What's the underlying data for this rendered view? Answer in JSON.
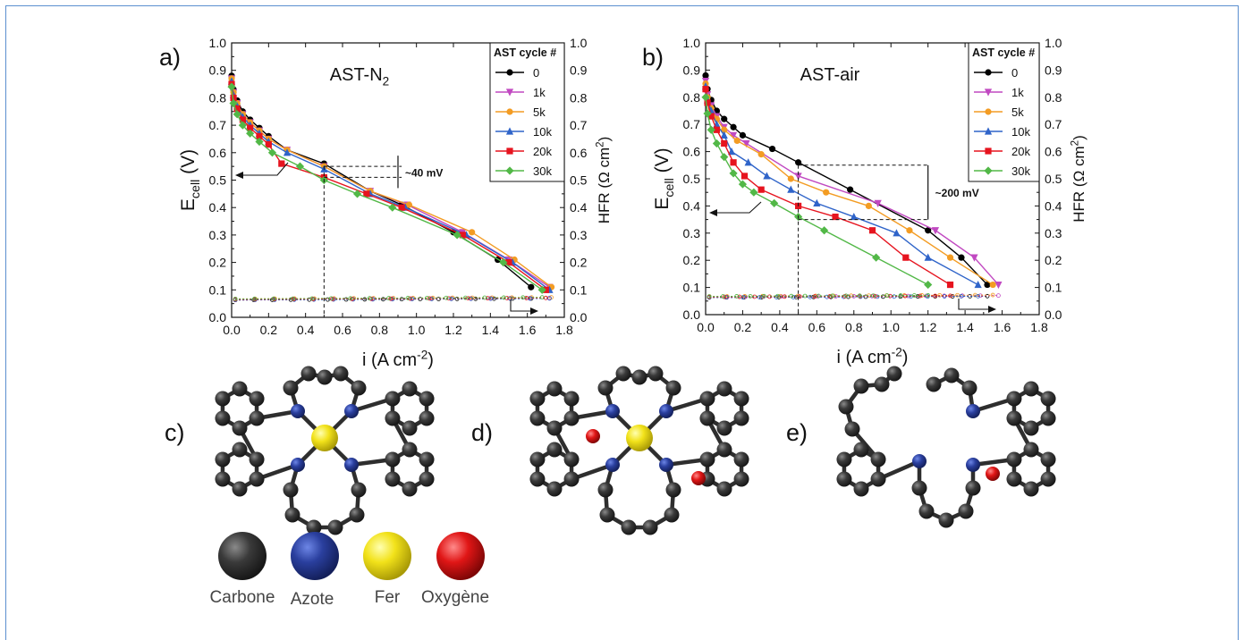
{
  "figure": {
    "panel_labels": [
      "a)",
      "b)",
      "c)",
      "d)",
      "e)"
    ],
    "atom_legend": [
      {
        "label": "Carbone",
        "color": "#3a3a3a"
      },
      {
        "label": "Azote",
        "color": "#2a3f9e"
      },
      {
        "label": "Fer",
        "color": "#f2e21a"
      },
      {
        "label": "Oxygène",
        "color": "#e01616"
      }
    ]
  },
  "chart_data": [
    {
      "panel": "a)",
      "type": "line",
      "title": "AST-N2",
      "xlabel": "i (A cm-2)",
      "ylabel": "Ecell (V)",
      "y2label": "HFR (Ω cm2)",
      "xlim": [
        0.0,
        1.8
      ],
      "ylim": [
        0.0,
        1.0
      ],
      "y2lim": [
        0.0,
        1.0
      ],
      "xticks": [
        "0.0",
        "0.2",
        "0.4",
        "0.6",
        "0.8",
        "1.0",
        "1.2",
        "1.4",
        "1.6",
        "1.8"
      ],
      "yticks": [
        "0.0",
        "0.1",
        "0.2",
        "0.3",
        "0.4",
        "0.5",
        "0.6",
        "0.7",
        "0.8",
        "0.9",
        "1.0"
      ],
      "legend_title": "AST cycle #",
      "legend_position": "top-right",
      "annotation": "~40 mV",
      "series": [
        {
          "name": "0",
          "color": "#000000",
          "marker": "circle",
          "x": [
            0.0,
            0.01,
            0.03,
            0.06,
            0.1,
            0.15,
            0.2,
            0.3,
            0.5,
            0.75,
            0.92,
            1.2,
            1.44,
            1.62
          ],
          "y": [
            0.88,
            0.83,
            0.79,
            0.75,
            0.72,
            0.69,
            0.66,
            0.61,
            0.56,
            0.46,
            0.41,
            0.31,
            0.21,
            0.11
          ]
        },
        {
          "name": "1k",
          "color": "#c149c1",
          "marker": "triangle-down",
          "x": [
            0.0,
            0.01,
            0.03,
            0.06,
            0.1,
            0.15,
            0.2,
            0.3,
            0.5,
            0.75,
            0.95,
            1.25,
            1.5,
            1.72
          ],
          "y": [
            0.87,
            0.82,
            0.78,
            0.74,
            0.71,
            0.68,
            0.65,
            0.61,
            0.55,
            0.46,
            0.41,
            0.31,
            0.21,
            0.11
          ]
        },
        {
          "name": "5k",
          "color": "#f39c23",
          "marker": "circle",
          "x": [
            0.0,
            0.01,
            0.03,
            0.06,
            0.1,
            0.15,
            0.2,
            0.3,
            0.5,
            0.75,
            0.96,
            1.3,
            1.53,
            1.73
          ],
          "y": [
            0.87,
            0.82,
            0.78,
            0.74,
            0.71,
            0.68,
            0.65,
            0.61,
            0.55,
            0.46,
            0.41,
            0.31,
            0.21,
            0.11
          ]
        },
        {
          "name": "10k",
          "color": "#2f64c9",
          "marker": "triangle-up",
          "x": [
            0.0,
            0.01,
            0.03,
            0.06,
            0.1,
            0.15,
            0.2,
            0.3,
            0.5,
            0.75,
            0.94,
            1.27,
            1.52,
            1.72
          ],
          "y": [
            0.86,
            0.81,
            0.77,
            0.73,
            0.7,
            0.67,
            0.64,
            0.6,
            0.54,
            0.45,
            0.4,
            0.3,
            0.2,
            0.1
          ]
        },
        {
          "name": "20k",
          "color": "#e6141f",
          "marker": "square",
          "x": [
            0.0,
            0.01,
            0.03,
            0.06,
            0.1,
            0.15,
            0.2,
            0.27,
            0.5,
            0.73,
            0.92,
            1.25,
            1.5,
            1.7
          ],
          "y": [
            0.85,
            0.8,
            0.76,
            0.72,
            0.69,
            0.66,
            0.63,
            0.56,
            0.51,
            0.45,
            0.4,
            0.3,
            0.2,
            0.1
          ]
        },
        {
          "name": "30k",
          "color": "#52b847",
          "marker": "diamond",
          "x": [
            0.0,
            0.01,
            0.03,
            0.06,
            0.1,
            0.15,
            0.22,
            0.37,
            0.5,
            0.68,
            0.87,
            1.22,
            1.47,
            1.68
          ],
          "y": [
            0.84,
            0.78,
            0.74,
            0.7,
            0.67,
            0.64,
            0.6,
            0.55,
            0.5,
            0.45,
            0.4,
            0.3,
            0.2,
            0.1
          ]
        }
      ]
    },
    {
      "panel": "b)",
      "type": "line",
      "title": "AST-air",
      "xlabel": "i (A cm-2)",
      "ylabel": "Ecell (V)",
      "y2label": "HFR (Ω cm2)",
      "xlim": [
        0.0,
        1.8
      ],
      "ylim": [
        0.0,
        1.0
      ],
      "y2lim": [
        0.0,
        1.0
      ],
      "xticks": [
        "0.0",
        "0.2",
        "0.4",
        "0.6",
        "0.8",
        "1.0",
        "1.2",
        "1.4",
        "1.6",
        "1.8"
      ],
      "yticks": [
        "0.0",
        "0.1",
        "0.2",
        "0.3",
        "0.4",
        "0.5",
        "0.6",
        "0.7",
        "0.8",
        "0.9",
        "1.0"
      ],
      "legend_title": "AST cycle #",
      "legend_position": "top-right",
      "annotation": "~200 mV",
      "series": [
        {
          "name": "0",
          "color": "#000000",
          "marker": "circle",
          "x": [
            0.0,
            0.01,
            0.03,
            0.06,
            0.1,
            0.15,
            0.2,
            0.36,
            0.5,
            0.78,
            1.2,
            1.38,
            1.52
          ],
          "y": [
            0.88,
            0.83,
            0.79,
            0.75,
            0.72,
            0.69,
            0.66,
            0.61,
            0.56,
            0.46,
            0.31,
            0.21,
            0.11
          ]
        },
        {
          "name": "1k",
          "color": "#c149c1",
          "marker": "triangle-down",
          "x": [
            0.0,
            0.01,
            0.03,
            0.06,
            0.1,
            0.15,
            0.22,
            0.5,
            0.93,
            1.24,
            1.45,
            1.58
          ],
          "y": [
            0.86,
            0.81,
            0.77,
            0.73,
            0.69,
            0.66,
            0.63,
            0.51,
            0.41,
            0.31,
            0.21,
            0.11
          ]
        },
        {
          "name": "5k",
          "color": "#f39c23",
          "marker": "circle",
          "x": [
            0.0,
            0.01,
            0.03,
            0.06,
            0.1,
            0.17,
            0.3,
            0.46,
            0.65,
            0.88,
            1.1,
            1.32,
            1.55
          ],
          "y": [
            0.85,
            0.8,
            0.76,
            0.72,
            0.68,
            0.64,
            0.59,
            0.5,
            0.45,
            0.4,
            0.31,
            0.21,
            0.11
          ]
        },
        {
          "name": "10k",
          "color": "#2f64c9",
          "marker": "triangle-up",
          "x": [
            0.0,
            0.01,
            0.03,
            0.06,
            0.1,
            0.14,
            0.23,
            0.33,
            0.46,
            0.6,
            0.8,
            1.03,
            1.2,
            1.47
          ],
          "y": [
            0.84,
            0.79,
            0.75,
            0.7,
            0.66,
            0.6,
            0.56,
            0.51,
            0.46,
            0.41,
            0.36,
            0.3,
            0.21,
            0.11
          ]
        },
        {
          "name": "20k",
          "color": "#e6141f",
          "marker": "square",
          "x": [
            0.0,
            0.01,
            0.03,
            0.06,
            0.1,
            0.15,
            0.21,
            0.3,
            0.5,
            0.7,
            0.9,
            1.08,
            1.32
          ],
          "y": [
            0.83,
            0.78,
            0.73,
            0.68,
            0.63,
            0.56,
            0.51,
            0.46,
            0.4,
            0.36,
            0.31,
            0.21,
            0.11
          ]
        },
        {
          "name": "30k",
          "color": "#52b847",
          "marker": "diamond",
          "x": [
            0.0,
            0.01,
            0.03,
            0.06,
            0.1,
            0.15,
            0.2,
            0.26,
            0.37,
            0.5,
            0.64,
            0.92,
            1.2
          ],
          "y": [
            0.8,
            0.74,
            0.68,
            0.63,
            0.58,
            0.52,
            0.48,
            0.45,
            0.41,
            0.36,
            0.31,
            0.21,
            0.11
          ]
        }
      ]
    }
  ]
}
